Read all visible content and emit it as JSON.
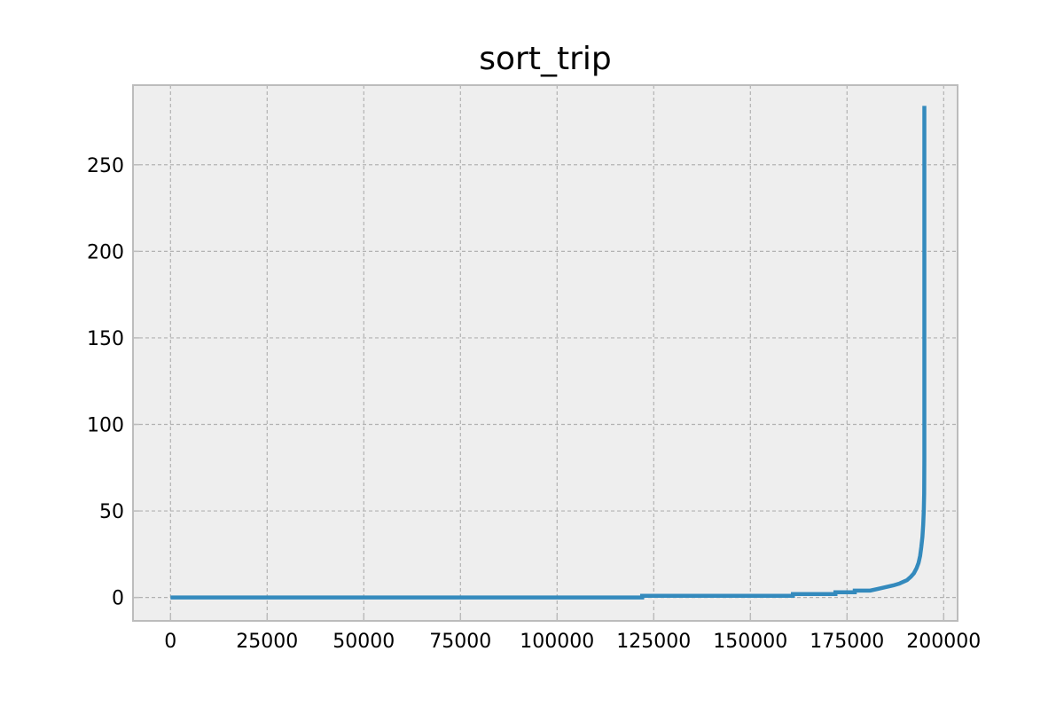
{
  "chart_data": {
    "type": "line",
    "title": "sort_trip",
    "xlabel": "",
    "ylabel": "",
    "xlim": [
      -9700,
      203600
    ],
    "ylim": [
      -13.5,
      296
    ],
    "x_ticks": [
      0,
      25000,
      50000,
      75000,
      100000,
      125000,
      150000,
      175000,
      200000
    ],
    "y_ticks": [
      0,
      50,
      100,
      150,
      200,
      250
    ],
    "grid": true,
    "series": [
      {
        "color": "#348abd",
        "points": [
          [
            0,
            0
          ],
          [
            122000,
            0
          ],
          [
            122000,
            1
          ],
          [
            161000,
            1
          ],
          [
            161000,
            2
          ],
          [
            172000,
            2
          ],
          [
            172000,
            3
          ],
          [
            177000,
            3
          ],
          [
            177000,
            4
          ],
          [
            181000,
            4
          ],
          [
            183000,
            5
          ],
          [
            185000,
            6
          ],
          [
            187000,
            7
          ],
          [
            188500,
            8
          ],
          [
            189500,
            9
          ],
          [
            190500,
            10
          ],
          [
            191500,
            12
          ],
          [
            192300,
            14
          ],
          [
            193000,
            17
          ],
          [
            193500,
            20
          ],
          [
            193900,
            24
          ],
          [
            194200,
            29
          ],
          [
            194500,
            35
          ],
          [
            194700,
            42
          ],
          [
            194850,
            50
          ],
          [
            194950,
            60
          ],
          [
            195000,
            80
          ],
          [
            195000,
            150
          ],
          [
            195000,
            284
          ]
        ]
      }
    ]
  },
  "colors": {
    "plot_background": "#eeeeee",
    "frame": "#bcbcbc",
    "grid": "#b2b2b2",
    "line": "#348abd"
  }
}
